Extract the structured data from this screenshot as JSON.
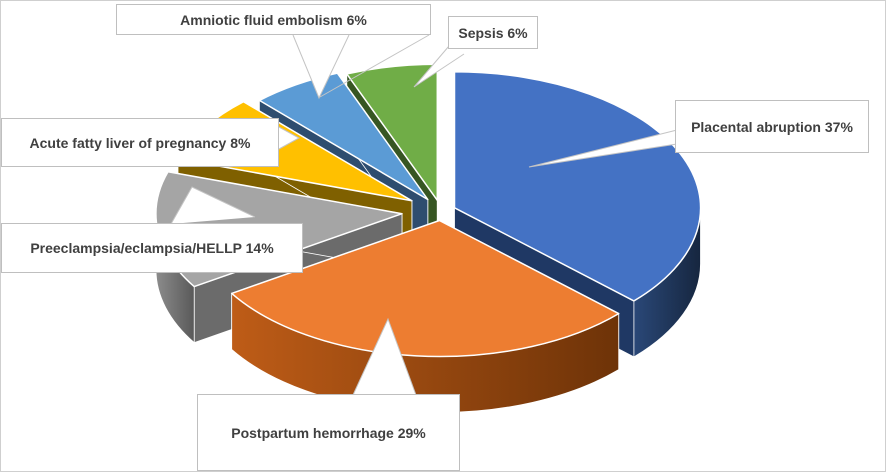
{
  "chart_data": {
    "type": "pie",
    "projection": "3d-exploded",
    "title": "",
    "legend": "none",
    "unit": "%",
    "categories": [
      "Placental abruption",
      "Postpartum hemorrhage",
      "Preeclampsia/eclampsia/HELLP",
      "Acute fatty liver of pregnancy",
      "Amniotic fluid embolism",
      "Sepsis"
    ],
    "values": [
      37,
      29,
      14,
      8,
      6,
      6
    ],
    "slices": [
      {
        "name": "Placental abruption",
        "percent": 37,
        "callout": "Placental abruption 37%",
        "color": "#4472C4",
        "dark": "#1F3864",
        "rim": [
          "#2A4878",
          "#16263F"
        ]
      },
      {
        "name": "Postpartum hemorrhage",
        "percent": 29,
        "callout": "Postpartum hemorrhage 29%",
        "color": "#ED7D31",
        "dark": "#8D4512",
        "rim": [
          "#BE5C17",
          "#6E3308"
        ]
      },
      {
        "name": "Preeclampsia/eclampsia/HELLP",
        "percent": 14,
        "callout": "Preeclampsia/eclampsia/HELLP 14%",
        "color": "#A5A5A5",
        "dark": "#6B6B6B",
        "rim": [
          "#8C8C8C",
          "#595959"
        ]
      },
      {
        "name": "Acute fatty liver of pregnancy",
        "percent": 8,
        "callout": "Acute fatty liver of pregnancy 8%",
        "color": "#FFC000",
        "dark": "#7F6000",
        "rim": [
          "#8F6C00",
          "#6B5100"
        ]
      },
      {
        "name": "Amniotic fluid embolism",
        "percent": 6,
        "callout": "Amniotic fluid embolism 6%",
        "color": "#5B9BD5",
        "dark": "#2E4D6F",
        "rim": [
          "#34567C",
          "#263F5B"
        ]
      },
      {
        "name": "Sepsis",
        "percent": 6,
        "callout": "Sepsis 6%",
        "color": "#70AD47",
        "dark": "#375623",
        "rim": [
          "#3F6428",
          "#2C4A1C"
        ]
      }
    ],
    "background": "#FFFFFF",
    "frame_border_color": "#CFCFCF",
    "callout_style": {
      "bg": "#FFFFFF",
      "border": "#BFBFBF",
      "leader_line": "#C4C4C4",
      "text_color": "#404040"
    }
  }
}
